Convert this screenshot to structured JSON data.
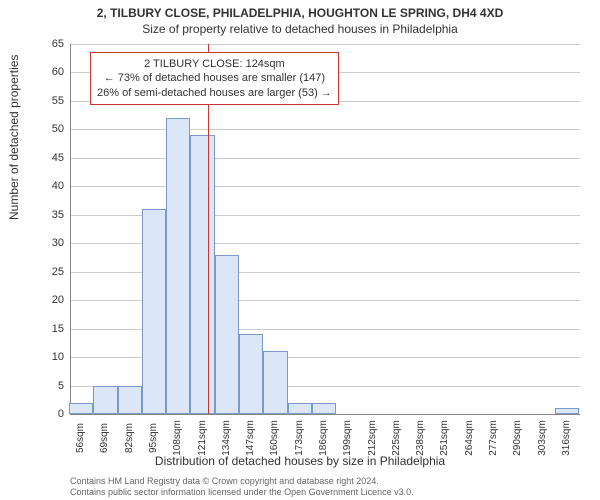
{
  "title_line1": "2, TILBURY CLOSE, PHILADELPHIA, HOUGHTON LE SPRING, DH4 4XD",
  "title_line2": "Size of property relative to detached houses in Philadelphia",
  "ylabel": "Number of detached properties",
  "xlabel": "Distribution of detached houses by size in Philadelphia",
  "footer_line1": "Contains HM Land Registry data © Crown copyright and database right 2024.",
  "footer_line2": "Contains public sector information licensed under the Open Government Licence v3.0.",
  "annotation": {
    "line1": "2 TILBURY CLOSE: 124sqm",
    "line2": "← 73% of detached houses are smaller (147)",
    "line3": "26% of semi-detached houses are larger (53) →",
    "border_color": "#cc3333",
    "fontsize": 11
  },
  "reference_line": {
    "x_value": 124,
    "color": "#cc3333"
  },
  "chart": {
    "type": "histogram",
    "xlim": [
      50,
      323
    ],
    "ylim": [
      0,
      65
    ],
    "ytick_step": 5,
    "xtick_step": 13,
    "xtick_start": 56,
    "xtick_suffix": "sqm",
    "yticks": [
      0,
      5,
      10,
      15,
      20,
      25,
      30,
      35,
      40,
      45,
      50,
      55,
      60,
      65
    ],
    "xticks": [
      56,
      69,
      82,
      95,
      108,
      121,
      134,
      147,
      160,
      173,
      186,
      199,
      212,
      225,
      238,
      251,
      264,
      277,
      290,
      303,
      316
    ],
    "bar_color": "#dbe7f6",
    "bar_border_color": "#7a9acc",
    "grid_color": "#cccccc",
    "axis_color": "#888888",
    "background_color": "#ffffff",
    "bins": [
      {
        "x": 56,
        "count": 2
      },
      {
        "x": 69,
        "count": 5
      },
      {
        "x": 82,
        "count": 5
      },
      {
        "x": 95,
        "count": 36
      },
      {
        "x": 108,
        "count": 52
      },
      {
        "x": 121,
        "count": 49
      },
      {
        "x": 134,
        "count": 28
      },
      {
        "x": 147,
        "count": 14
      },
      {
        "x": 160,
        "count": 11
      },
      {
        "x": 173,
        "count": 2
      },
      {
        "x": 186,
        "count": 2
      },
      {
        "x": 199,
        "count": 0
      },
      {
        "x": 212,
        "count": 0
      },
      {
        "x": 225,
        "count": 0
      },
      {
        "x": 238,
        "count": 0
      },
      {
        "x": 251,
        "count": 0
      },
      {
        "x": 264,
        "count": 0
      },
      {
        "x": 277,
        "count": 0
      },
      {
        "x": 290,
        "count": 0
      },
      {
        "x": 303,
        "count": 0
      },
      {
        "x": 316,
        "count": 1
      }
    ]
  },
  "colors": {
    "text": "#333333",
    "footer": "#666666"
  },
  "typography": {
    "title_fontsize": 12,
    "axis_label_fontsize": 12,
    "tick_fontsize": 11,
    "footer_fontsize": 9
  }
}
